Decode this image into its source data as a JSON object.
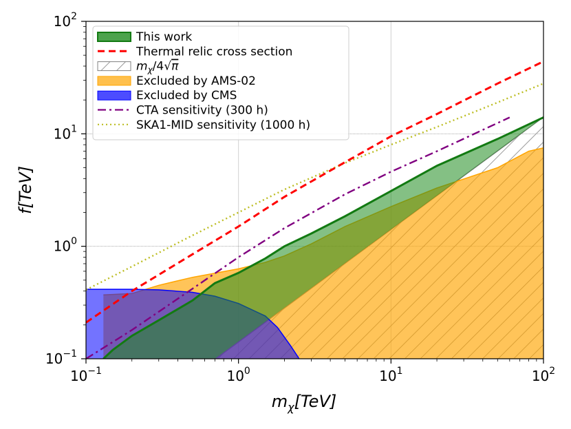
{
  "chart_data": {
    "type": "line",
    "title": "",
    "xlabel": {
      "base": "m",
      "sub": "χ",
      "unit": "[TeV]"
    },
    "ylabel": {
      "base": "f",
      "unit": "[TeV]"
    },
    "xscale": "log",
    "yscale": "log",
    "xlim": [
      0.1,
      100
    ],
    "ylim": [
      0.1,
      100
    ],
    "x_ticks": [
      {
        "value": 0.1,
        "base": "10",
        "exp": "−1"
      },
      {
        "value": 1,
        "base": "10",
        "exp": "0"
      },
      {
        "value": 10,
        "base": "10",
        "exp": "1"
      },
      {
        "value": 100,
        "base": "10",
        "exp": "2"
      }
    ],
    "y_ticks": [
      {
        "value": 0.1,
        "base": "10",
        "exp": "−1"
      },
      {
        "value": 1,
        "base": "10",
        "exp": "0"
      },
      {
        "value": 10,
        "base": "10",
        "exp": "1"
      },
      {
        "value": 100,
        "base": "10",
        "exp": "2"
      }
    ],
    "grid": true,
    "legend_position": "top-left",
    "series": [
      {
        "key": "this_work",
        "name": "This work",
        "kind": "fill",
        "color": "#1f8c1f",
        "boundary": [
          [
            0.13,
            0.1
          ],
          [
            0.15,
            0.12
          ],
          [
            0.2,
            0.16
          ],
          [
            0.3,
            0.22
          ],
          [
            0.5,
            0.33
          ],
          [
            0.7,
            0.47
          ],
          [
            1,
            0.58
          ],
          [
            1.5,
            0.78
          ],
          [
            2,
            1.0
          ],
          [
            3,
            1.3
          ],
          [
            5,
            1.85
          ],
          [
            10,
            3.1
          ],
          [
            20,
            5.2
          ],
          [
            50,
            9.0
          ],
          [
            100,
            14.0
          ],
          [
            100,
            14.0
          ],
          [
            0.7,
            0.1
          ]
        ]
      },
      {
        "key": "thermal_relic",
        "name": "Thermal relic cross section",
        "kind": "line",
        "style": "dashed",
        "color": "#ff0000",
        "points": [
          [
            0.1,
            0.21
          ],
          [
            0.2,
            0.4
          ],
          [
            0.5,
            0.85
          ],
          [
            1,
            1.5
          ],
          [
            2,
            2.75
          ],
          [
            5,
            5.6
          ],
          [
            10,
            9.5
          ],
          [
            20,
            15
          ],
          [
            50,
            28
          ],
          [
            100,
            44
          ]
        ]
      },
      {
        "key": "unitarity",
        "name": "mχ/4√π",
        "kind": "hatch",
        "color": "#808080",
        "boundary": [
          [
            0.709,
            0.1
          ],
          [
            1,
            0.141
          ],
          [
            10,
            1.41
          ],
          [
            100,
            14.1
          ],
          [
            100,
            0.1
          ]
        ]
      },
      {
        "key": "ams02",
        "name": "Excluded by AMS-02",
        "kind": "fill",
        "color": "#ffa500",
        "boundary": [
          [
            0.13,
            0.1
          ],
          [
            0.13,
            0.37
          ],
          [
            0.2,
            0.38
          ],
          [
            0.3,
            0.45
          ],
          [
            0.5,
            0.53
          ],
          [
            1,
            0.63
          ],
          [
            1.5,
            0.72
          ],
          [
            2,
            0.82
          ],
          [
            3,
            1.05
          ],
          [
            5,
            1.5
          ],
          [
            10,
            2.25
          ],
          [
            20,
            3.3
          ],
          [
            50,
            5.0
          ],
          [
            80,
            7.0
          ],
          [
            100,
            7.5
          ],
          [
            100,
            0.1
          ]
        ]
      },
      {
        "key": "cms",
        "name": "Excluded by CMS",
        "kind": "fill",
        "color": "#0000ff",
        "boundary": [
          [
            0.1,
            0.1
          ],
          [
            0.1,
            0.415
          ],
          [
            0.2,
            0.415
          ],
          [
            0.3,
            0.41
          ],
          [
            0.5,
            0.39
          ],
          [
            0.7,
            0.36
          ],
          [
            1,
            0.31
          ],
          [
            1.5,
            0.24
          ],
          [
            1.8,
            0.19
          ],
          [
            2.2,
            0.13
          ],
          [
            2.5,
            0.1
          ]
        ]
      },
      {
        "key": "cta",
        "name": "CTA sensitivity (300 h)",
        "kind": "line",
        "style": "dashdot",
        "color": "#800080",
        "points": [
          [
            0.1,
            0.1
          ],
          [
            0.2,
            0.18
          ],
          [
            0.5,
            0.42
          ],
          [
            1,
            0.8
          ],
          [
            2,
            1.45
          ],
          [
            5,
            2.9
          ],
          [
            10,
            4.6
          ],
          [
            20,
            7.0
          ],
          [
            60,
            14.0
          ]
        ]
      },
      {
        "key": "ska",
        "name": "SKA1-MID sensitivity (1000 h)",
        "kind": "line",
        "style": "dotted",
        "color": "#bcbd22",
        "points": [
          [
            0.1,
            0.41
          ],
          [
            0.2,
            0.66
          ],
          [
            0.5,
            1.25
          ],
          [
            1,
            2.0
          ],
          [
            2,
            3.2
          ],
          [
            5,
            5.5
          ],
          [
            10,
            8.0
          ],
          [
            20,
            11.5
          ],
          [
            50,
            19.0
          ],
          [
            100,
            28.0
          ]
        ]
      }
    ]
  }
}
